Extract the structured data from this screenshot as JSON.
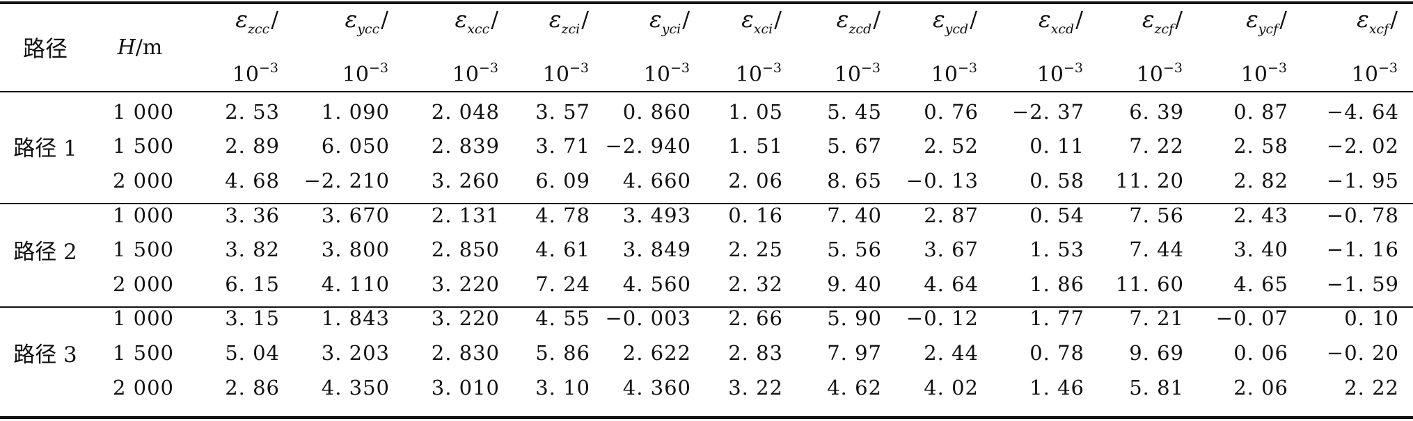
{
  "table": {
    "header": {
      "path_label": "路径",
      "h_symbol": "H",
      "h_unit": "/m",
      "strain_symbol": "ε",
      "unit_base": "10",
      "unit_exp": "−3",
      "columns": [
        {
          "sub": "zcc"
        },
        {
          "sub": "ycc"
        },
        {
          "sub": "xcc"
        },
        {
          "sub": "zci"
        },
        {
          "sub": "yci"
        },
        {
          "sub": "xci"
        },
        {
          "sub": "zcd"
        },
        {
          "sub": "ycd"
        },
        {
          "sub": "xcd"
        },
        {
          "sub": "zcf"
        },
        {
          "sub": "ycf"
        },
        {
          "sub": "xcf"
        }
      ]
    },
    "groups": [
      {
        "path": "路径 1",
        "rows": [
          {
            "h": "1 000",
            "values": [
              "2. 53",
              "1. 090",
              "2. 048",
              "3. 57",
              "0. 860",
              "1. 05",
              "5. 45",
              "0. 76",
              "−2. 37",
              "6. 39",
              "0. 87",
              "−4. 64"
            ]
          },
          {
            "h": "1 500",
            "values": [
              "2. 89",
              "6. 050",
              "2. 839",
              "3. 71",
              "−2. 940",
              "1. 51",
              "5. 67",
              "2. 52",
              "0. 11",
              "7. 22",
              "2. 58",
              "−2. 02"
            ]
          },
          {
            "h": "2 000",
            "values": [
              "4. 68",
              "−2. 210",
              "3. 260",
              "6. 09",
              "4. 660",
              "2. 06",
              "8. 65",
              "−0. 13",
              "0. 58",
              "11. 20",
              "2. 82",
              "−1. 95"
            ]
          }
        ]
      },
      {
        "path": "路径 2",
        "rows": [
          {
            "h": "1 000",
            "values": [
              "3. 36",
              "3. 670",
              "2. 131",
              "4. 78",
              "3. 493",
              "0. 16",
              "7. 40",
              "2. 87",
              "0. 54",
              "7. 56",
              "2. 43",
              "−0. 78"
            ]
          },
          {
            "h": "1 500",
            "values": [
              "3. 82",
              "3. 800",
              "2. 850",
              "4. 61",
              "3. 849",
              "2. 25",
              "5. 56",
              "3. 67",
              "1. 53",
              "7. 44",
              "3. 40",
              "−1. 16"
            ]
          },
          {
            "h": "2 000",
            "values": [
              "6. 15",
              "4. 110",
              "3. 220",
              "7. 24",
              "4. 560",
              "2. 32",
              "9. 40",
              "4. 64",
              "1. 86",
              "11. 60",
              "4. 65",
              "−1. 59"
            ]
          }
        ]
      },
      {
        "path": "路径 3",
        "rows": [
          {
            "h": "1 000",
            "values": [
              "3. 15",
              "1. 843",
              "3. 220",
              "4. 55",
              "−0. 003",
              "2. 66",
              "5. 90",
              "−0. 12",
              "1. 77",
              "7. 21",
              "−0. 07",
              "0. 10"
            ]
          },
          {
            "h": "1 500",
            "values": [
              "5. 04",
              "3. 203",
              "2. 830",
              "5. 86",
              "2. 622",
              "2. 83",
              "7. 97",
              "2. 44",
              "0. 78",
              "9. 69",
              "0. 06",
              "−0. 20"
            ]
          },
          {
            "h": "2 000",
            "values": [
              "2. 86",
              "4. 350",
              "3. 010",
              "3. 10",
              "4. 360",
              "3. 22",
              "4. 62",
              "4. 02",
              "1. 46",
              "5. 81",
              "2. 06",
              "2. 22"
            ]
          }
        ]
      }
    ]
  }
}
